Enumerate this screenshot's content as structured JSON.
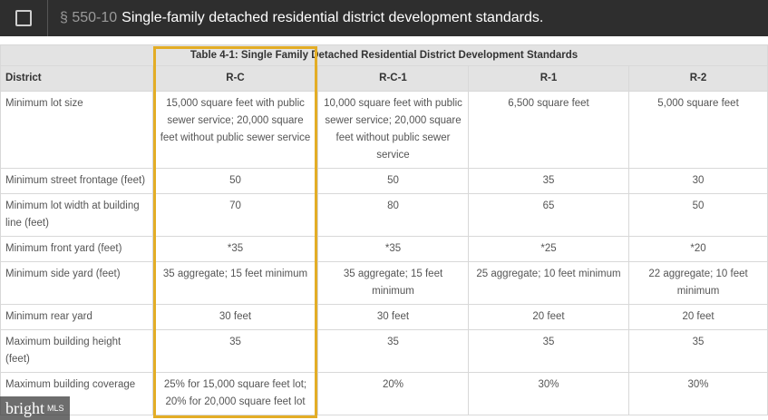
{
  "header": {
    "section": "§ 550-10",
    "title": "Single-family detached residential district development standards."
  },
  "table": {
    "caption": "Table 4-1: Single Family Detached Residential District Development Standards",
    "columns": [
      "District",
      "R-C",
      "R-C-1",
      "R-1",
      "R-2"
    ],
    "rows": [
      [
        "Minimum lot size",
        "15,000 square feet with public sewer service; 20,000 square feet without public sewer service",
        "10,000 square feet with public sewer service; 20,000 square feet without public sewer service",
        "6,500 square feet",
        "5,000 square feet"
      ],
      [
        "Minimum street frontage (feet)",
        "50",
        "50",
        "35",
        "30"
      ],
      [
        "Minimum lot width at building line (feet)",
        "70",
        "80",
        "65",
        "50"
      ],
      [
        "Minimum front yard (feet)",
        "*35",
        "*35",
        "*25",
        "*20"
      ],
      [
        "Minimum side yard (feet)",
        "35 aggregate; 15 feet minimum",
        "35 aggregate; 15 feet minimum",
        "25 aggregate; 10 feet minimum",
        "22 aggregate; 10 feet minimum"
      ],
      [
        "Minimum rear yard",
        "30 feet",
        "30 feet",
        "20 feet",
        "20 feet"
      ],
      [
        "Maximum building height (feet)",
        "35",
        "35",
        "35",
        "35"
      ],
      [
        "Maximum building coverage",
        "25% for 15,000 square feet lot; 20% for 20,000 square feet lot",
        "20%",
        "30%",
        "30%"
      ]
    ]
  },
  "watermark": {
    "brand": "bright",
    "suffix": "MLS"
  }
}
